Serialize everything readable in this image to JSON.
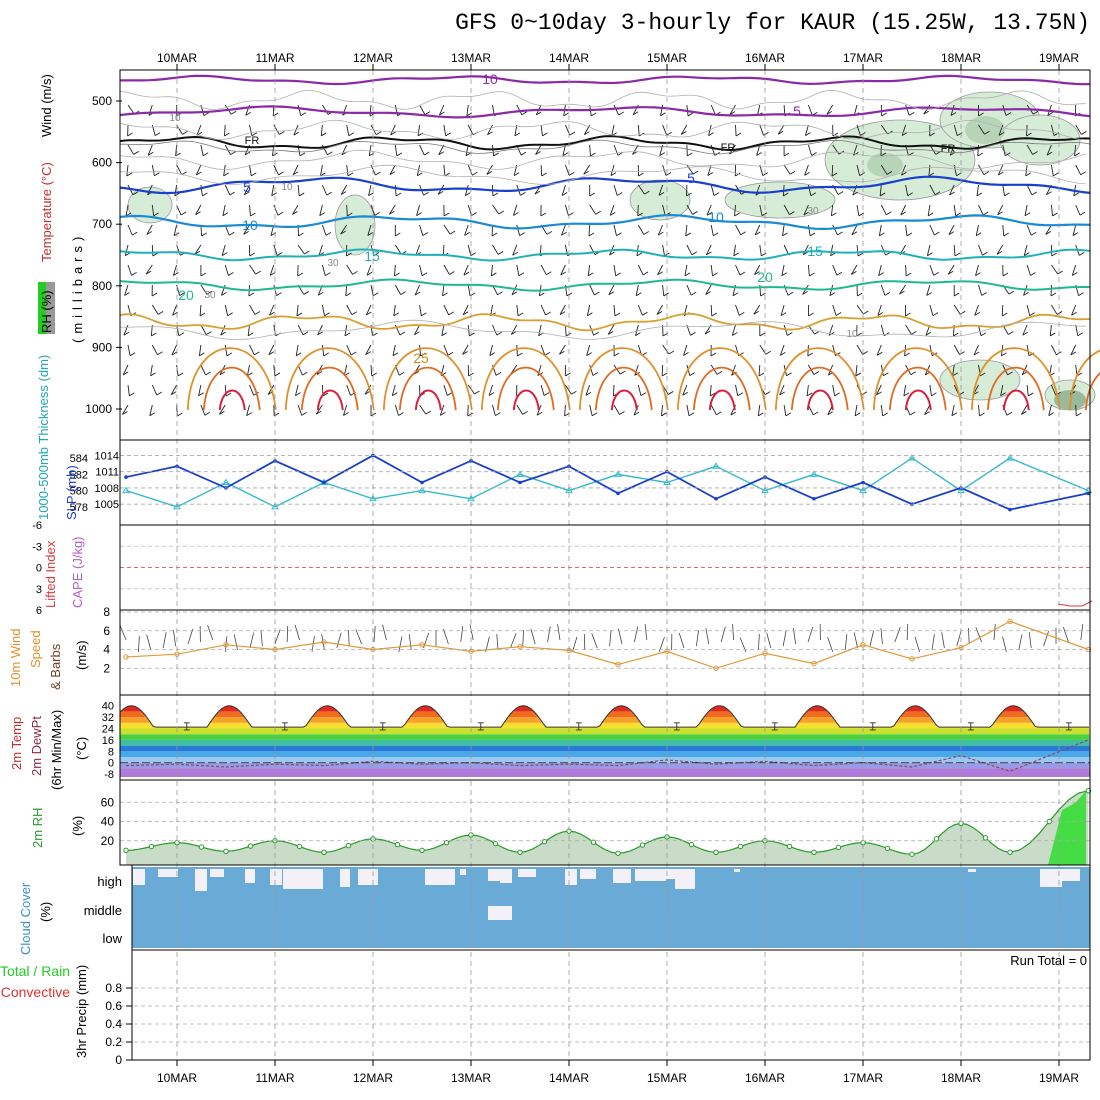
{
  "title": "GFS 0~10day 3-hourly for KAUR (15.25W, 13.75N)",
  "date_labels": [
    "10MAR",
    "11MAR",
    "12MAR",
    "13MAR",
    "14MAR",
    "15MAR",
    "16MAR",
    "17MAR",
    "18MAR",
    "19MAR"
  ],
  "colors": {
    "temp_warm": "#d08a1a",
    "temp_hot": "#e03030",
    "rh_fill": "#d6ecd6",
    "cloud": "#6aaad6",
    "thickness": "#33bbcc",
    "slp": "#1a3fcc",
    "wind": "#e09a3a",
    "rh2m": "#2a9a2a",
    "dewpt": "#8a4a5a"
  },
  "panels": {
    "upper_air": {
      "labels": {
        "rh": "RH (%)",
        "temp": "Temperature (°C)",
        "wind": "Wind (m/s)",
        "units": "(millibars)"
      },
      "y_ticks": [
        "500",
        "600",
        "700",
        "800",
        "900",
        "1000"
      ],
      "isotherm_labels": [
        {
          "text": "10",
          "kind": "purple"
        },
        {
          "text": "5",
          "kind": "purple"
        },
        {
          "text": "FR",
          "kind": "black"
        },
        {
          "text": "FR",
          "kind": "black"
        },
        {
          "text": "FR",
          "kind": "black"
        },
        {
          "text": "5",
          "kind": "blue"
        },
        {
          "text": "5",
          "kind": "blue"
        },
        {
          "text": "10",
          "kind": "ltblue"
        },
        {
          "text": "10",
          "kind": "ltblue"
        },
        {
          "text": "15",
          "kind": "teal"
        },
        {
          "text": "15",
          "kind": "teal"
        },
        {
          "text": "20",
          "kind": "green"
        },
        {
          "text": "20",
          "kind": "green"
        },
        {
          "text": "25",
          "kind": "orange"
        }
      ],
      "rh_labels": [
        "10",
        "10",
        "30",
        "30",
        "30",
        "10"
      ]
    },
    "thickness_slp": {
      "labels": {
        "thickness": "1000-500mb Thickness (dm)",
        "slp": "SLP (mb)"
      },
      "y_ticks_left": [
        "584",
        "582",
        "580",
        "578"
      ],
      "y_ticks_right": [
        "1014",
        "1011",
        "1008",
        "1005"
      ]
    },
    "stability": {
      "labels": {
        "li": "Lifted Index",
        "cape": "CAPE (J/kg)"
      },
      "y_ticks": [
        "-6",
        "-3",
        "0",
        "3",
        "6"
      ]
    },
    "wind10m": {
      "labels": {
        "main": "10m Wind",
        "speed": "Speed",
        "barbs": "& Barbs",
        "units": "(m/s)"
      },
      "y_ticks": [
        "8",
        "6",
        "4",
        "2"
      ]
    },
    "temp2m": {
      "labels": {
        "temp": "2m Temp",
        "dewpt": "2m DewPt",
        "minmax": "(6hr Min/Max)",
        "units": "(°C)"
      },
      "y_ticks": [
        "40",
        "32",
        "24",
        "16",
        "8",
        "0",
        "-8"
      ]
    },
    "rh2m": {
      "labels": {
        "main": "2m RH",
        "units": "(%)"
      },
      "y_ticks": [
        "60",
        "40",
        "20"
      ]
    },
    "cloud": {
      "labels": {
        "main": "Cloud Cover",
        "units": "(%)"
      },
      "y_ticks": [
        "high",
        "middle",
        "low"
      ]
    },
    "precip": {
      "labels": {
        "main": "3hr Precip (mm)",
        "total": "Total / Rain",
        "conv": "Convective",
        "run_total": "Run Total = 0"
      },
      "y_ticks": [
        "0.8",
        "0.6",
        "0.4",
        "0.2",
        "0"
      ]
    }
  },
  "chart_data": [
    {
      "type": "line",
      "name": "thickness_slp",
      "x": [
        "10MAR 00",
        "10MAR 12",
        "11MAR 00",
        "11MAR 12",
        "12MAR 00",
        "12MAR 12",
        "13MAR 00",
        "13MAR 12",
        "14MAR 00",
        "14MAR 12",
        "15MAR 00",
        "15MAR 12",
        "16MAR 00",
        "16MAR 12",
        "17MAR 00",
        "17MAR 12",
        "18MAR 00",
        "18MAR 12",
        "19MAR 00",
        "19MAR 06"
      ],
      "series": [
        {
          "axis": "thickness_dm",
          "values": [
            580,
            578,
            581,
            578,
            581,
            579,
            580,
            579,
            582,
            580,
            582,
            581,
            583,
            580,
            582,
            580,
            584,
            580,
            584,
            580
          ]
        },
        {
          "axis": "slp_mb",
          "values": [
            1010,
            1012,
            1008,
            1013,
            1009,
            1014,
            1009,
            1013,
            1009,
            1012,
            1007,
            1011,
            1006,
            1010,
            1006,
            1009,
            1005,
            1008,
            1004,
            1007
          ]
        }
      ],
      "ylim_thickness": [
        577,
        585
      ],
      "ylim_slp": [
        1003,
        1015
      ]
    },
    {
      "type": "line",
      "name": "wind10m_speed",
      "x": [
        "10MAR 00",
        "10MAR 12",
        "11MAR 00",
        "11MAR 12",
        "12MAR 00",
        "12MAR 12",
        "13MAR 00",
        "13MAR 12",
        "14MAR 00",
        "14MAR 12",
        "15MAR 00",
        "15MAR 12",
        "16MAR 00",
        "16MAR 12",
        "17MAR 00",
        "17MAR 12",
        "18MAR 00",
        "18MAR 12",
        "19MAR 00",
        "19MAR 06"
      ],
      "values": [
        3.2,
        3.5,
        4.5,
        4.0,
        4.8,
        4.0,
        4.5,
        3.8,
        4.3,
        3.9,
        2.4,
        3.8,
        2.0,
        3.6,
        2.5,
        4.5,
        3.0,
        4.2,
        7.0,
        4.0
      ],
      "ylim": [
        0,
        8
      ]
    },
    {
      "type": "line",
      "name": "rh2m",
      "x": [
        "10MAR 00",
        "10MAR 12",
        "11MAR 00",
        "11MAR 12",
        "12MAR 00",
        "12MAR 12",
        "13MAR 00",
        "13MAR 12",
        "14MAR 00",
        "14MAR 12",
        "15MAR 00",
        "15MAR 12",
        "16MAR 00",
        "16MAR 12",
        "17MAR 00",
        "17MAR 12",
        "18MAR 00",
        "18MAR 12",
        "19MAR 00",
        "19MAR 06"
      ],
      "values": [
        10,
        18,
        9,
        20,
        8,
        22,
        10,
        26,
        8,
        30,
        7,
        24,
        8,
        20,
        8,
        18,
        6,
        38,
        8,
        72
      ],
      "ylim": [
        0,
        80
      ]
    },
    {
      "type": "area",
      "name": "temp2m",
      "x": [
        "10MAR 00",
        "10MAR 12",
        "11MAR 00",
        "11MAR 12",
        "12MAR 00",
        "12MAR 12",
        "13MAR 00",
        "13MAR 12",
        "14MAR 00",
        "14MAR 12",
        "15MAR 00",
        "15MAR 12",
        "16MAR 00",
        "16MAR 12",
        "17MAR 00",
        "17MAR 12",
        "18MAR 00",
        "18MAR 12",
        "19MAR 00",
        "19MAR 06"
      ],
      "series": [
        {
          "name": "2m Temp",
          "values": [
            40,
            26,
            40,
            26,
            41,
            26,
            40,
            26,
            40,
            26,
            41,
            26,
            41,
            26,
            42,
            26,
            41,
            26,
            40,
            22
          ]
        },
        {
          "name": "2m DewPt",
          "values": [
            -2,
            -1,
            -3,
            -1,
            -2,
            1,
            -1,
            0,
            -2,
            -1,
            -2,
            2,
            -1,
            1,
            -2,
            0,
            -3,
            5,
            -6,
            16
          ]
        }
      ],
      "ylim": [
        -10,
        44
      ]
    },
    {
      "type": "table",
      "name": "cloud_cover_high_pct",
      "x": [
        "10MAR",
        "11MAR",
        "12MAR",
        "13MAR",
        "14MAR",
        "15MAR",
        "16MAR",
        "17MAR",
        "18MAR",
        "19MAR"
      ],
      "values": [
        20,
        60,
        50,
        60,
        50,
        60,
        10,
        5,
        5,
        30
      ]
    },
    {
      "type": "bar",
      "name": "precip_3hr",
      "categories": [
        "10MAR",
        "11MAR",
        "12MAR",
        "13MAR",
        "14MAR",
        "15MAR",
        "16MAR",
        "17MAR",
        "18MAR",
        "19MAR"
      ],
      "values": [
        0,
        0,
        0,
        0,
        0,
        0,
        0,
        0,
        0,
        0
      ],
      "ylim": [
        0,
        1
      ]
    }
  ]
}
